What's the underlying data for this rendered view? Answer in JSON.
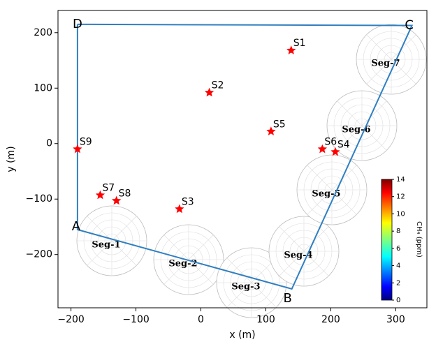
{
  "chart_data": {
    "type": "scatter",
    "x_label": "x (m)",
    "y_label": "y (m)",
    "xlim": [
      -220,
      348
    ],
    "ylim": [
      -296,
      240
    ],
    "xticks": [
      {
        "value": -200,
        "label": "−200"
      },
      {
        "value": -100,
        "label": "−100"
      },
      0,
      100,
      200,
      300
    ],
    "yticks": [
      {
        "value": -200,
        "label": "−200"
      },
      {
        "value": -100,
        "label": "−100"
      },
      0,
      100,
      200
    ],
    "points": {
      "labels": [
        "S1",
        "S2",
        "S3",
        "S4",
        "S5",
        "S6",
        "S7",
        "S8",
        "S9"
      ],
      "x": [
        139,
        13,
        -33,
        207,
        108,
        187,
        -155,
        -130,
        -190
      ],
      "y": [
        168,
        92,
        -118,
        -15,
        22,
        -10,
        -93,
        -103,
        -10
      ],
      "color": "#ff0000"
    },
    "path": {
      "labels": [
        "D",
        "A",
        "B",
        "C"
      ],
      "x": [
        -190,
        -190,
        140,
        325
      ],
      "y": [
        215,
        -155,
        -262,
        213
      ],
      "closed": true,
      "color": "#2f7fc1"
    },
    "insets": [
      "Seg-1",
      "Seg-2",
      "Seg-3",
      "Seg-4",
      "Seg-5",
      "Seg-6",
      "Seg-7"
    ],
    "colorbar": {
      "label": "CH₄ (ppm)",
      "lim": [
        0,
        14
      ],
      "ticks": [
        0,
        2,
        4,
        6,
        8,
        10,
        12,
        14
      ]
    }
  }
}
